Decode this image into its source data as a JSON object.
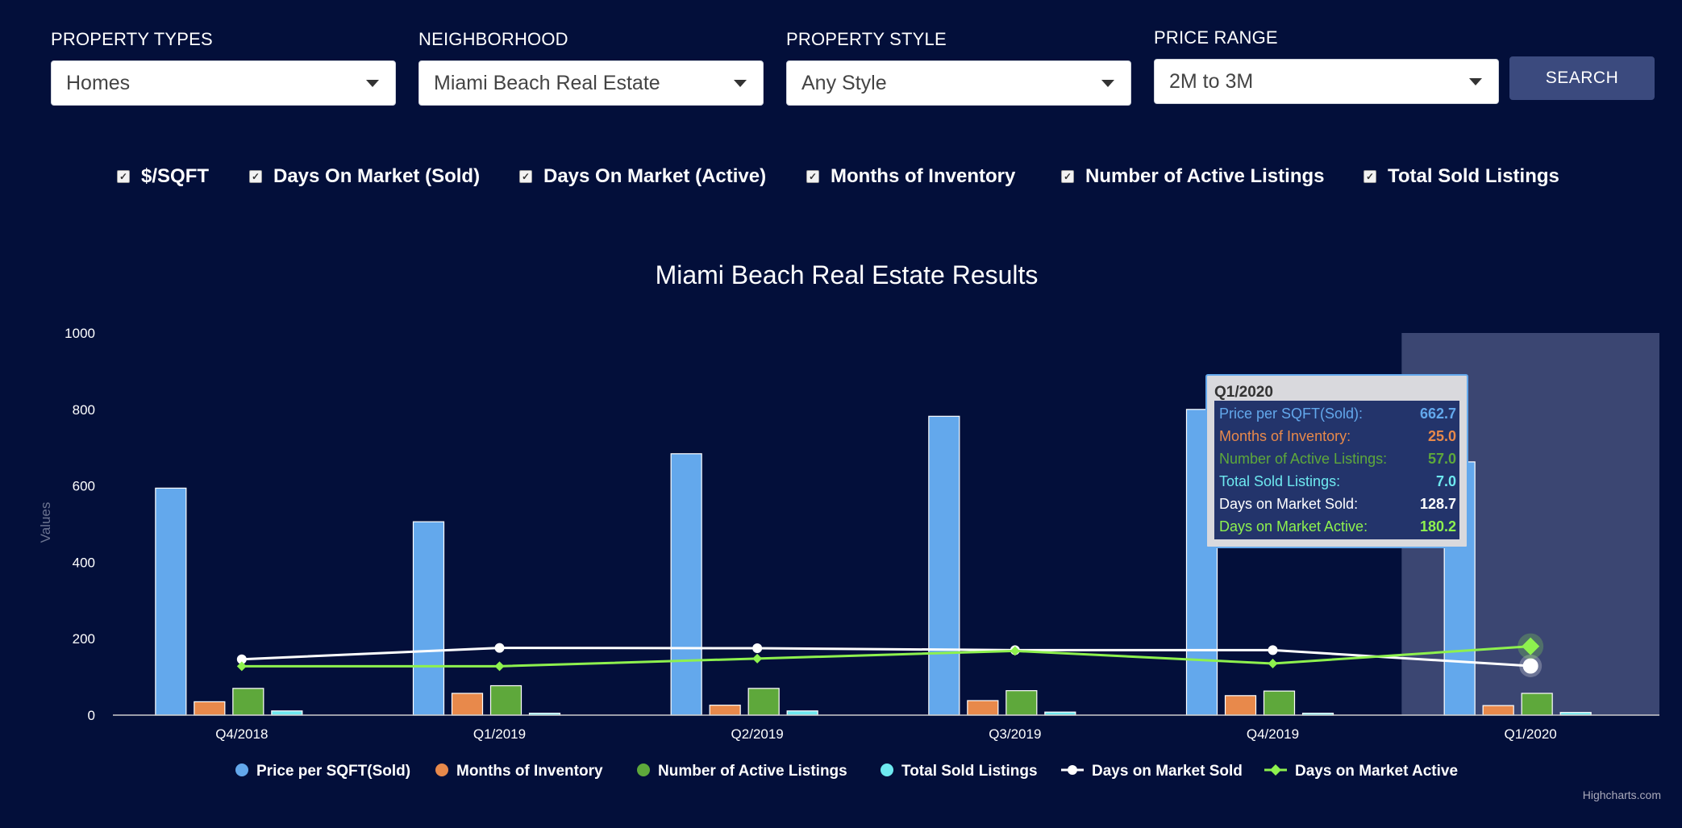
{
  "filters": {
    "property_types": {
      "label": "PROPERTY TYPES",
      "value": "Homes"
    },
    "neighborhood": {
      "label": "NEIGHBORHOOD",
      "value": "Miami Beach Real Estate"
    },
    "property_style": {
      "label": "PROPERTY STYLE",
      "value": "Any Style"
    },
    "price_range": {
      "label": "PRICE RANGE",
      "value": "2M to 3M"
    },
    "search_label": "SEARCH"
  },
  "toggles": [
    {
      "label": "$/SQFT",
      "checked": true
    },
    {
      "label": "Days On Market (Sold)",
      "checked": true
    },
    {
      "label": "Days On Market (Active)",
      "checked": true
    },
    {
      "label": "Months of Inventory",
      "checked": true
    },
    {
      "label": "Number of Active Listings",
      "checked": true
    },
    {
      "label": "Total Sold Listings",
      "checked": true
    }
  ],
  "credit": "Highcharts.com",
  "colors": {
    "background": "#030f3a",
    "price": "#63a8ec",
    "months": "#e8894b",
    "active_listings": "#5ea83b",
    "sold_listings": "#6ee9f0",
    "dom_sold": "#ffffff",
    "dom_active": "#8ef14e",
    "highlight": "#3e4a75"
  },
  "chart_data": {
    "type": "bar",
    "title": "Miami Beach Real Estate Results",
    "ylabel": "Values",
    "xlabel": "",
    "ylim": [
      0,
      1000
    ],
    "yticks": [
      0,
      200,
      400,
      600,
      800,
      1000
    ],
    "categories": [
      "Q4/2018",
      "Q1/2019",
      "Q2/2019",
      "Q3/2019",
      "Q4/2019",
      "Q1/2020"
    ],
    "series": [
      {
        "name": "Price per SQFT(Sold)",
        "type": "column",
        "values": [
          594,
          506,
          684,
          782,
          800,
          662.7
        ]
      },
      {
        "name": "Months of Inventory",
        "type": "column",
        "values": [
          35,
          57,
          26,
          38,
          51,
          25.0
        ]
      },
      {
        "name": "Number of Active Listings",
        "type": "column",
        "values": [
          70,
          77,
          70,
          64,
          63,
          57.0
        ]
      },
      {
        "name": "Total Sold Listings",
        "type": "column",
        "values": [
          11,
          5,
          11,
          8,
          5,
          7.0
        ]
      },
      {
        "name": "Days on Market Sold",
        "type": "line",
        "values": [
          146,
          176,
          175,
          170,
          170,
          128.7
        ]
      },
      {
        "name": "Days on Market Active",
        "type": "line",
        "values": [
          128,
          128,
          148,
          168,
          135,
          180.2
        ]
      }
    ],
    "highlighted_category": "Q1/2020",
    "tooltip": {
      "title": "Q1/2020",
      "rows": [
        {
          "label": "Price per SQFT(Sold):",
          "value": "662.7"
        },
        {
          "label": "Months of Inventory:",
          "value": "25.0"
        },
        {
          "label": "Number of Active Listings:",
          "value": "57.0"
        },
        {
          "label": "Total Sold Listings:",
          "value": "7.0"
        },
        {
          "label": "Days on Market Sold:",
          "value": "128.7"
        },
        {
          "label": "Days on Market Active:",
          "value": "180.2"
        }
      ]
    },
    "legend_position": "bottom-center",
    "grid": false
  }
}
